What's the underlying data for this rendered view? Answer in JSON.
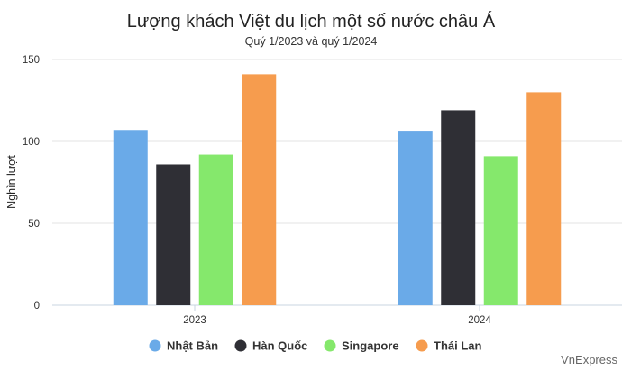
{
  "chart_data": {
    "type": "bar",
    "title": "Lượng khách Việt du lịch một số nước châu Á",
    "subtitle": "Quý 1/2023 và quý 1/2024",
    "ylabel": "Nghìn lượt",
    "xlabel": "",
    "categories": [
      "2023",
      "2024"
    ],
    "ylim": [
      0,
      150
    ],
    "yticks": [
      0,
      50,
      100,
      150
    ],
    "grid": true,
    "legend_position": "bottom",
    "series": [
      {
        "name": "Nhật Bản",
        "color": "#6aaae8",
        "values": [
          107,
          106
        ]
      },
      {
        "name": "Hàn Quốc",
        "color": "#2f2f35",
        "values": [
          86,
          119
        ]
      },
      {
        "name": "Singapore",
        "color": "#85e86c",
        "values": [
          92,
          91
        ]
      },
      {
        "name": "Thái Lan",
        "color": "#f69c4e",
        "values": [
          141,
          130
        ]
      }
    ]
  },
  "credit": "VnExpress"
}
